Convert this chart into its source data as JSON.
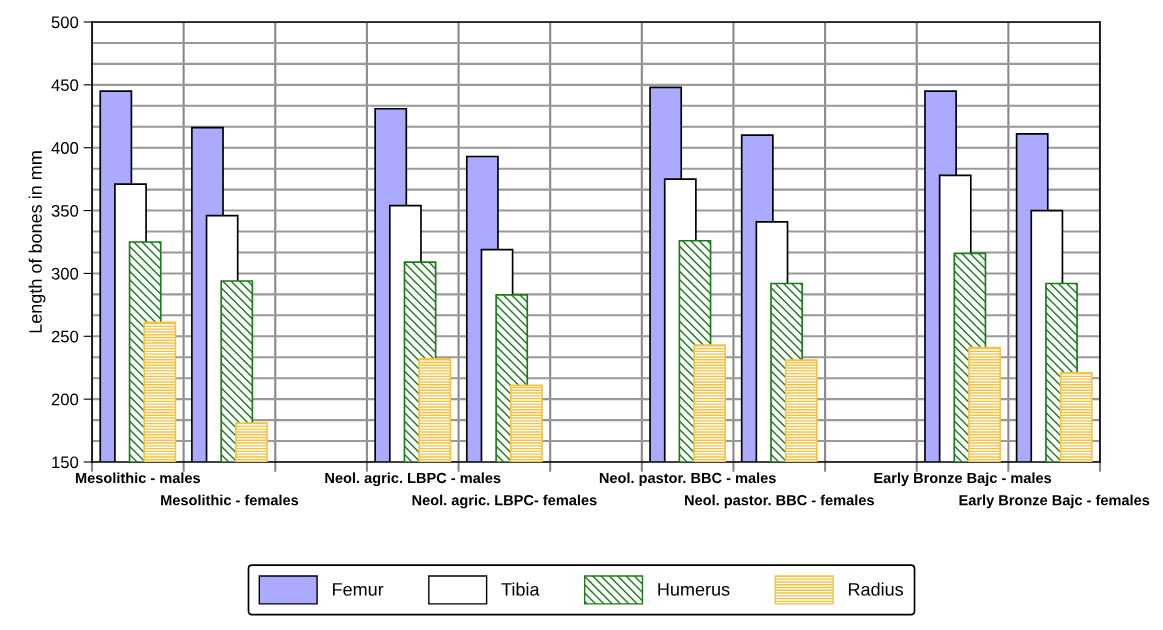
{
  "chart_data": {
    "type": "bar",
    "ylabel": "Length of bones in mm",
    "categories": [
      "Mesolithic - males",
      "Mesolithic - females",
      null,
      "Neol. agric. LBPC - males",
      "Neol. agric. LBPC- females",
      null,
      "Neol. pastor. BBC - males",
      "Neol. pastor. BBC - females",
      null,
      "Early Bronze Bajc - males",
      "Early Bronze Bajc - females"
    ],
    "series": [
      {
        "name": "Femur",
        "color": "#aaaaff",
        "values": [
          445,
          416,
          null,
          431,
          393,
          null,
          448,
          410,
          null,
          445,
          411
        ]
      },
      {
        "name": "Tibia",
        "color": "#ffffff",
        "values": [
          371,
          346,
          null,
          354,
          319,
          null,
          375,
          341,
          null,
          378,
          350
        ]
      },
      {
        "name": "Humerus",
        "color": "#1a7a1a",
        "values": [
          325,
          294,
          null,
          309,
          283,
          null,
          326,
          292,
          null,
          316,
          292
        ]
      },
      {
        "name": "Radius",
        "color": "#f5c242",
        "values": [
          261,
          181,
          null,
          232,
          211,
          null,
          243,
          231,
          null,
          241,
          221
        ]
      }
    ],
    "ylim": [
      150,
      500
    ],
    "yticks": [
      150,
      200,
      250,
      300,
      350,
      400,
      450,
      500
    ],
    "grid": true,
    "legend": "bottom"
  }
}
